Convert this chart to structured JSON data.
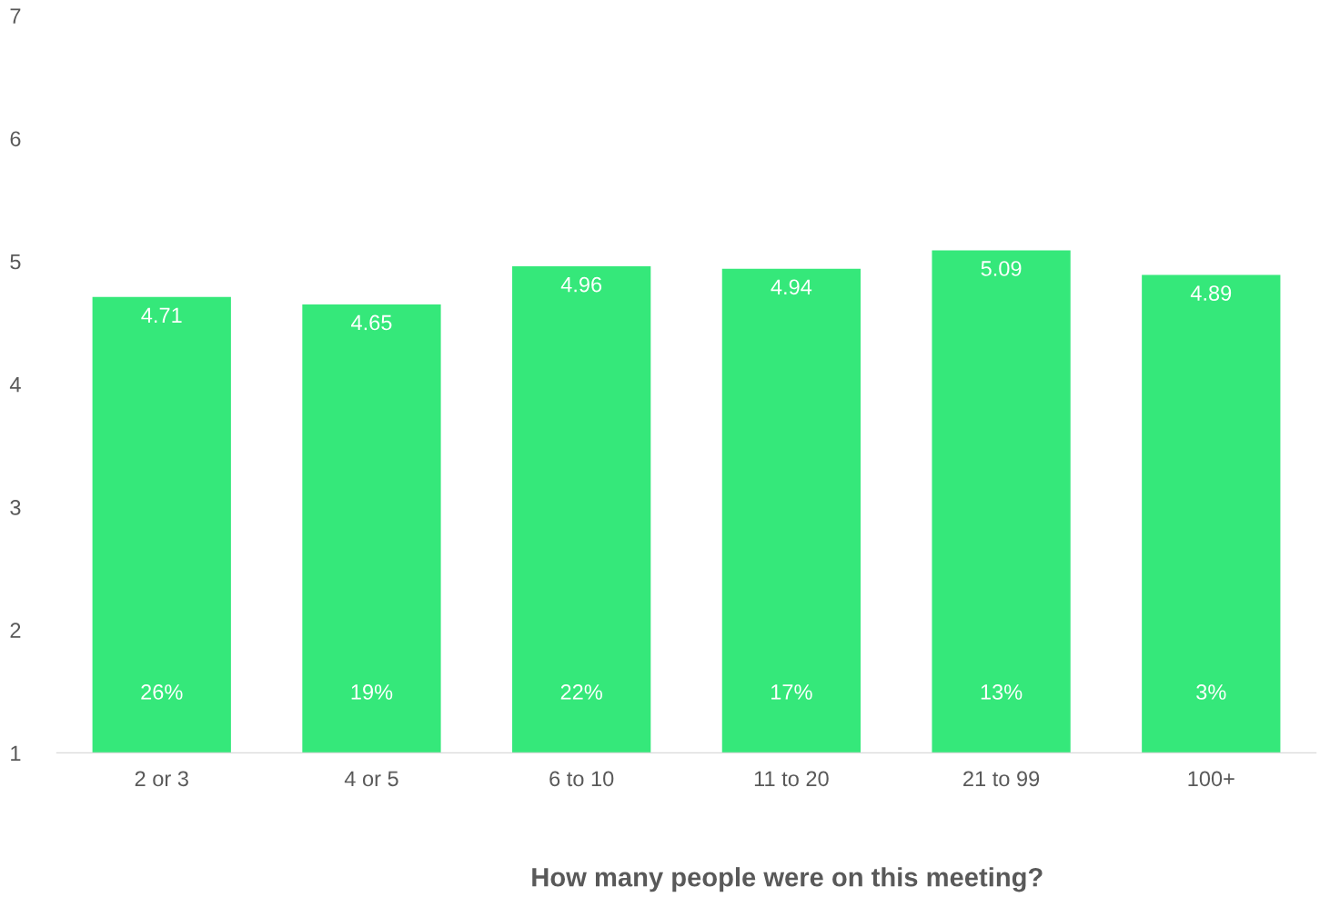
{
  "chart_data": {
    "type": "bar",
    "xlabel": "How many people were on this meeting?",
    "categories": [
      "2 or 3",
      "4 or 5",
      "6 to 10",
      "11 to 20",
      "21 to 99",
      "100+"
    ],
    "values": [
      4.71,
      4.65,
      4.96,
      4.94,
      5.09,
      4.89
    ],
    "color": "#35e87a",
    "data_labels": true,
    "ylim": [
      1,
      7
    ],
    "yticks": [
      1,
      2,
      3,
      4,
      5,
      6,
      7
    ],
    "grid": false,
    "legend": false,
    "annotations": [
      "26%",
      "19%",
      "22%",
      "17%",
      "13%",
      "3%"
    ]
  }
}
